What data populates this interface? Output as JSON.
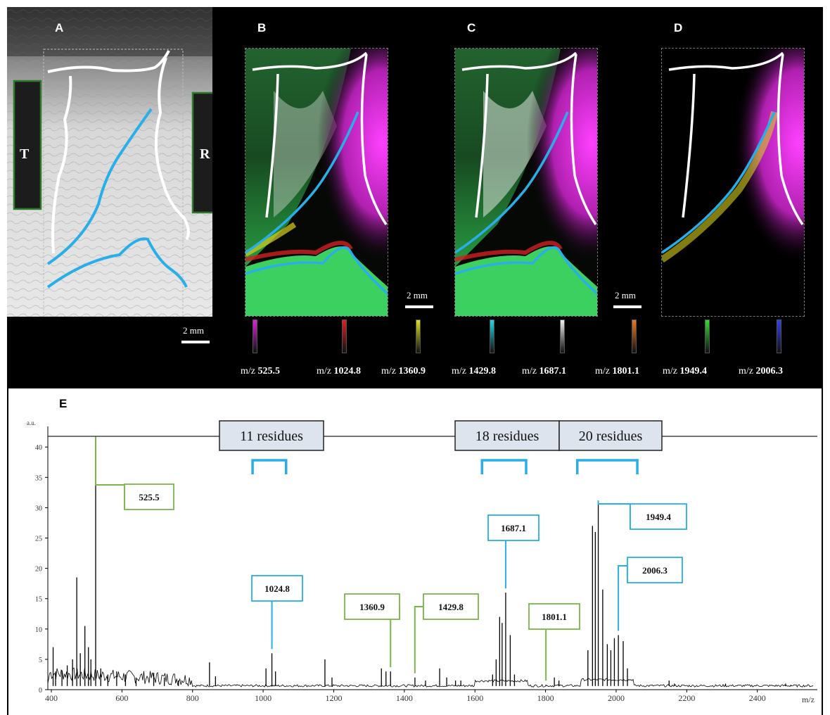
{
  "panels": {
    "a": "A",
    "b": "B",
    "c": "C",
    "d": "D",
    "e": "E",
    "t_label": "T",
    "r_label": "R",
    "scale": "2 mm"
  },
  "legend": [
    {
      "prefix": "m/z",
      "value": "525.5",
      "color": "#e020e0"
    },
    {
      "prefix": "m/z",
      "value": "1024.8",
      "color": "#e02020"
    },
    {
      "prefix": "m/z",
      "value": "1360.9",
      "color": "#e0e020"
    },
    {
      "prefix": "m/z",
      "value": "1429.8",
      "color": "#20d8e8"
    },
    {
      "prefix": "m/z",
      "value": "1687.1",
      "color": "#f0f0f0"
    },
    {
      "prefix": "m/z",
      "value": "1801.1",
      "color": "#f07818"
    },
    {
      "prefix": "m/z",
      "value": "1949.4",
      "color": "#30e030"
    },
    {
      "prefix": "m/z",
      "value": "2006.3",
      "color": "#3040f0"
    }
  ],
  "chart_data": {
    "type": "line",
    "ylabel": "a.u.",
    "xlabel": "m/z",
    "xlim": [
      390,
      2570
    ],
    "ylim": [
      0,
      42
    ],
    "xticks": [
      400,
      600,
      800,
      1000,
      1200,
      1400,
      1600,
      1800,
      2000,
      2200,
      2400
    ],
    "yticks": [
      0,
      5,
      10,
      15,
      20,
      25,
      30,
      35,
      40
    ],
    "peaks": [
      [
        405,
        7
      ],
      [
        412,
        3
      ],
      [
        430,
        3.2
      ],
      [
        445,
        4
      ],
      [
        460,
        5
      ],
      [
        472,
        18.5
      ],
      [
        482,
        6
      ],
      [
        495,
        10.5
      ],
      [
        505,
        7
      ],
      [
        512,
        5
      ],
      [
        525.5,
        41
      ],
      [
        540,
        3.5
      ],
      [
        560,
        2.5
      ],
      [
        585,
        3
      ],
      [
        610,
        2.5
      ],
      [
        640,
        2
      ],
      [
        690,
        2.8
      ],
      [
        720,
        2
      ],
      [
        760,
        1.5
      ],
      [
        848,
        4.5
      ],
      [
        865,
        2.2
      ],
      [
        1008,
        3.5
      ],
      [
        1024.8,
        6
      ],
      [
        1035,
        3
      ],
      [
        1175,
        5
      ],
      [
        1195,
        2
      ],
      [
        1335,
        3.5
      ],
      [
        1348,
        3
      ],
      [
        1360.9,
        3
      ],
      [
        1430,
        2
      ],
      [
        1460,
        1.5
      ],
      [
        1500,
        3.5
      ],
      [
        1520,
        2
      ],
      [
        1545,
        1.5
      ],
      [
        1560,
        1.5
      ],
      [
        1650,
        2.5
      ],
      [
        1660,
        5
      ],
      [
        1670,
        12
      ],
      [
        1677,
        11
      ],
      [
        1687.1,
        16
      ],
      [
        1700,
        9
      ],
      [
        1712,
        2.5
      ],
      [
        1801.1,
        0.8
      ],
      [
        1825,
        2
      ],
      [
        1838,
        1.5
      ],
      [
        1920,
        6.5
      ],
      [
        1933,
        27
      ],
      [
        1941,
        26
      ],
      [
        1949.4,
        30.5
      ],
      [
        1962,
        16.5
      ],
      [
        1975,
        7.5
      ],
      [
        1985,
        6.5
      ],
      [
        1995,
        8.5
      ],
      [
        2006.3,
        9
      ],
      [
        2020,
        8
      ],
      [
        2032,
        3.5
      ],
      [
        2150,
        1.5
      ],
      [
        2165,
        1
      ],
      [
        2310,
        1
      ],
      [
        2480,
        1
      ],
      [
        2495,
        0.8
      ]
    ],
    "annotations": [
      {
        "label": "525.5",
        "mz": 525.5,
        "color": "green"
      },
      {
        "label": "1024.8",
        "mz": 1024.8,
        "color": "blue"
      },
      {
        "label": "1360.9",
        "mz": 1360.9,
        "color": "green"
      },
      {
        "label": "1429.8",
        "mz": 1429.8,
        "color": "green"
      },
      {
        "label": "1687.1",
        "mz": 1687.1,
        "color": "blue"
      },
      {
        "label": "1801.1",
        "mz": 1801.1,
        "color": "green"
      },
      {
        "label": "1949.4",
        "mz": 1949.4,
        "color": "blue"
      },
      {
        "label": "2006.3",
        "mz": 2006.3,
        "color": "blue"
      }
    ],
    "groups": [
      {
        "label": "11 residues",
        "from": 970,
        "to": 1065
      },
      {
        "label": "18 residues",
        "from": 1620,
        "to": 1745
      },
      {
        "label": "20 residues",
        "from": 1890,
        "to": 2060
      }
    ],
    "colors": {
      "green": "#7ab648",
      "blue": "#2aaee8",
      "box_fill": "#dde4ee"
    }
  }
}
